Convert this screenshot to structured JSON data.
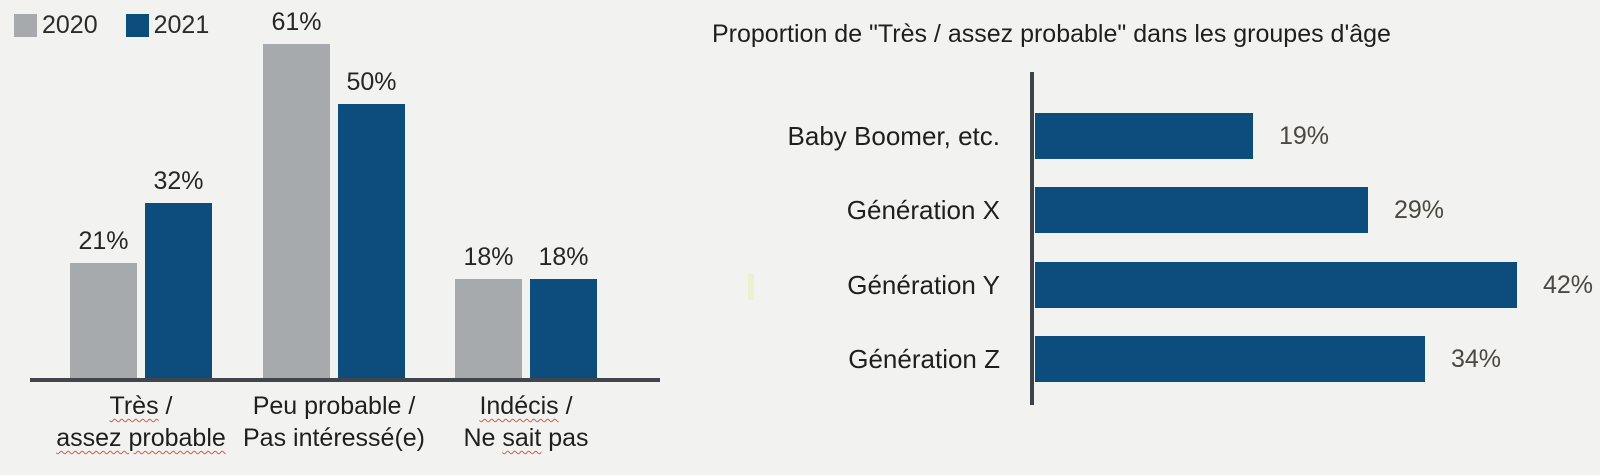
{
  "background": "#f2f2f0",
  "colors": {
    "series_2020": "#a7aaac",
    "series_2021": "#0d4d7d",
    "axis": "#41454c",
    "text": "#1f1f1f",
    "value_text_left": "#262626",
    "value_text_right": "#4b4741",
    "squiggle": "#d85948"
  },
  "chart_data": [
    {
      "type": "bar",
      "orientation": "vertical",
      "title": "",
      "legend": [
        {
          "label": "2020",
          "color_key": "series_2020"
        },
        {
          "label": "2021",
          "color_key": "series_2021"
        }
      ],
      "legend_position": "top-left",
      "grid": false,
      "ylim": [
        0,
        65
      ],
      "value_suffix": "%",
      "categories": [
        "Très / assez probable",
        "Peu probable / Pas intéressé(e)",
        "Indécis / Ne sait pas"
      ],
      "category_lines": [
        [
          [
            {
              "t": "Très",
              "sq": true
            },
            {
              "t": " /",
              "sq": false
            }
          ],
          [
            {
              "t": "assez probable",
              "sq": true
            }
          ]
        ],
        [
          [
            {
              "t": "Peu probable /",
              "sq": false
            }
          ],
          [
            {
              "t": "Pas intéressé(e)",
              "sq": false
            }
          ]
        ],
        [
          [
            {
              "t": "Indécis",
              "sq": true
            },
            {
              "t": " /",
              "sq": false
            }
          ],
          [
            {
              "t": "Ne ",
              "sq": false
            },
            {
              "t": "sait",
              "sq": true
            },
            {
              "t": " pas",
              "sq": false
            }
          ]
        ]
      ],
      "series": [
        {
          "name": "2020",
          "color_key": "series_2020",
          "values": [
            21,
            61,
            18
          ],
          "labels": [
            "21%",
            "61%",
            "18%"
          ]
        },
        {
          "name": "2021",
          "color_key": "series_2021",
          "values": [
            32,
            50,
            18
          ],
          "labels": [
            "32%",
            "50%",
            "18%"
          ]
        }
      ]
    },
    {
      "type": "bar",
      "orientation": "horizontal",
      "title": "Proportion de \"Très / assez probable\" dans les groupes d'âge",
      "grid": false,
      "xlim": [
        0,
        50
      ],
      "value_suffix": "%",
      "categories": [
        "Baby Boomer, etc.",
        "Génération X",
        "Génération Y",
        "Génération Z"
      ],
      "values": [
        19,
        29,
        42,
        34
      ],
      "labels": [
        "19%",
        "29%",
        "42%",
        "34%"
      ],
      "bar_color_key": "series_2021",
      "value_labels": "right of bars"
    }
  ]
}
